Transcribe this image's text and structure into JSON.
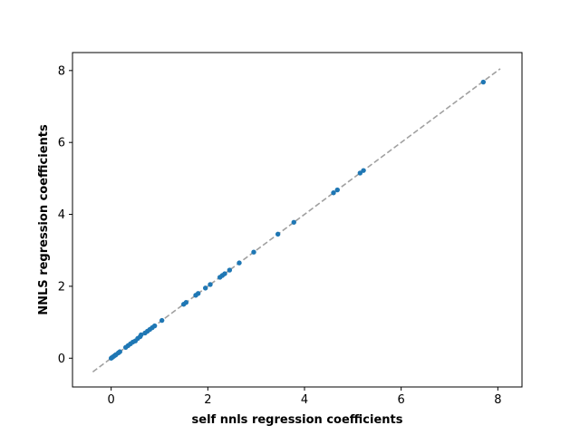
{
  "chart_data": {
    "type": "scatter",
    "xlabel": "self nnls regression coefficients",
    "ylabel": "NNLS regression coefficients",
    "xlim": [
      -0.8,
      8.5
    ],
    "ylim": [
      -0.8,
      8.5
    ],
    "xticks": [
      0,
      2,
      4,
      6,
      8
    ],
    "yticks": [
      0,
      2,
      4,
      6,
      8
    ],
    "grid": false,
    "point_color": "#1f77b4",
    "reference_line": {
      "style": "dashed",
      "color": "#a0a0a0",
      "from": [
        -0.38,
        -0.38
      ],
      "to": [
        8.05,
        8.05
      ]
    },
    "x": [
      0.0,
      0.02,
      0.05,
      0.08,
      0.1,
      0.15,
      0.18,
      0.3,
      0.35,
      0.4,
      0.45,
      0.5,
      0.55,
      0.6,
      0.62,
      0.7,
      0.75,
      0.8,
      0.85,
      0.9,
      1.05,
      1.5,
      1.55,
      1.75,
      1.8,
      1.95,
      2.05,
      2.25,
      2.3,
      2.35,
      2.45,
      2.65,
      2.95,
      3.45,
      3.78,
      4.6,
      4.68,
      5.15,
      5.22,
      7.7
    ],
    "y": [
      0.0,
      0.02,
      0.05,
      0.08,
      0.1,
      0.15,
      0.18,
      0.3,
      0.35,
      0.4,
      0.45,
      0.48,
      0.55,
      0.6,
      0.65,
      0.7,
      0.75,
      0.8,
      0.85,
      0.9,
      1.05,
      1.5,
      1.55,
      1.75,
      1.8,
      1.95,
      2.05,
      2.25,
      2.3,
      2.35,
      2.45,
      2.65,
      2.95,
      3.45,
      3.78,
      4.6,
      4.68,
      5.15,
      5.22,
      7.68
    ]
  }
}
